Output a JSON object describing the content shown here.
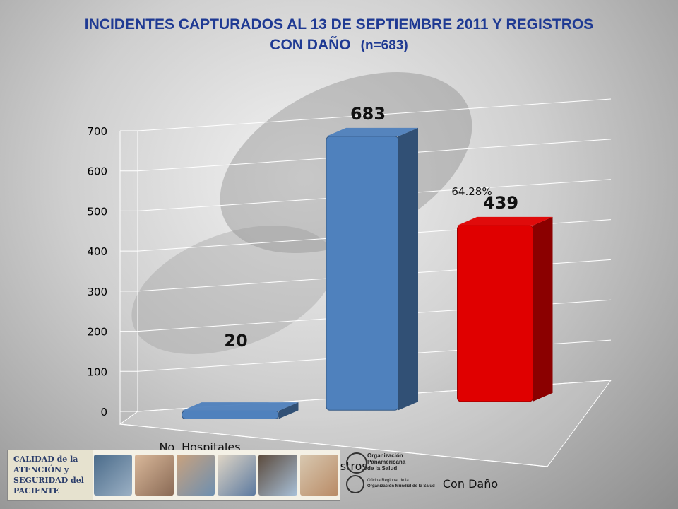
{
  "title": {
    "line1": "INCIDENTES CAPTURADOS AL 13 DE SEPTIEMBRE 2011 Y REGISTROS",
    "line2": "CON DAÑO",
    "n": "(n=683)"
  },
  "colors": {
    "title": "#1f3a93",
    "blue_bar": "#4f81bd",
    "red_bar": "#e00000"
  },
  "chart_data": {
    "type": "bar",
    "title": "INCIDENTES CAPTURADOS AL 13 DE SEPTIEMBRE 2011 Y REGISTROS CON DAÑO (n=683)",
    "categories": [
      "No. Hospitales",
      "No. Registros",
      "Con Daño"
    ],
    "values": [
      20,
      683,
      439
    ],
    "data_labels": [
      "20",
      "683",
      "439"
    ],
    "bar_colors": [
      "#4f81bd",
      "#4f81bd",
      "#e00000"
    ],
    "ylim": [
      0,
      700
    ],
    "yticks": [
      "0",
      "100",
      "200",
      "300",
      "400",
      "500",
      "600",
      "700"
    ],
    "grid": true,
    "style": "3d",
    "annotations": [
      {
        "text": "64.28%",
        "category": "Con Daño"
      }
    ]
  },
  "footer": {
    "logo_lines": [
      "CALIDAD de la",
      "ATENCIÓN y",
      "SEGURIDAD del",
      "PACIENTE"
    ],
    "ops_lines": [
      "Organización",
      "Panamericana",
      "de la Salud"
    ],
    "oms_lines": [
      "Oficina Regional de la",
      "Organización Mundial de la Salud"
    ]
  }
}
